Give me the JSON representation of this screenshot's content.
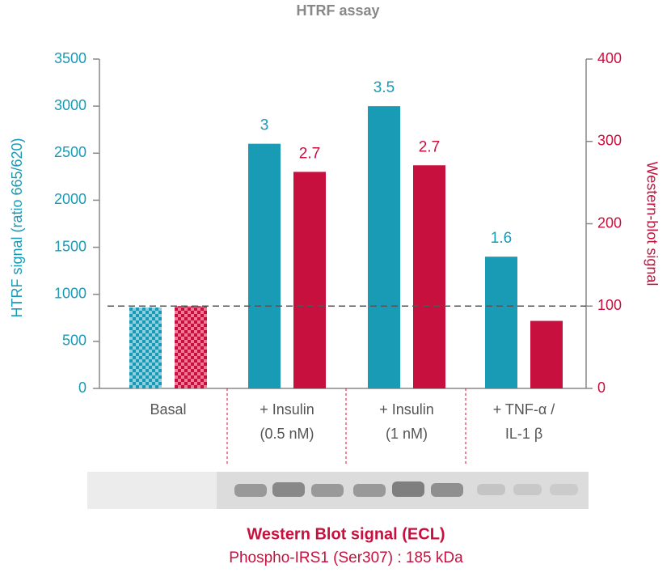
{
  "chart_data": {
    "type": "bar",
    "title": "HTRF assay",
    "categories": [
      [
        "Basal"
      ],
      [
        "+ Insulin",
        "(0.5 nM)"
      ],
      [
        "+ Insulin",
        "(1 nM)"
      ],
      [
        "+ TNF-α /",
        "IL-1 β"
      ]
    ],
    "series": [
      {
        "name": "HTRF signal (ratio 665/620)",
        "color": "#1a9bb5",
        "values": [
          860,
          2600,
          3000,
          1400
        ],
        "fold_changes": [
          null,
          3,
          3.5,
          1.6
        ]
      },
      {
        "name": "Western-blot signal",
        "color": "#c8103e",
        "axis": "y2",
        "values": [
          100,
          263,
          271,
          82
        ],
        "fold_changes": [
          null,
          2.7,
          2.7,
          null
        ]
      }
    ],
    "patterned_category": 0,
    "ylim": [
      0,
      3500
    ],
    "yticks": [
      0,
      500,
      1000,
      1500,
      2000,
      2500,
      3000,
      3500
    ],
    "y2lim": [
      0,
      400
    ],
    "y2ticks": [
      0,
      100,
      200,
      300,
      400
    ],
    "reference_line": {
      "value": 100,
      "axis": "y2"
    },
    "footer": {
      "title": "Western  Blot signal (ECL)",
      "subtitle": "Phospho-IRS1 (Ser307) : 185 kDa"
    }
  }
}
